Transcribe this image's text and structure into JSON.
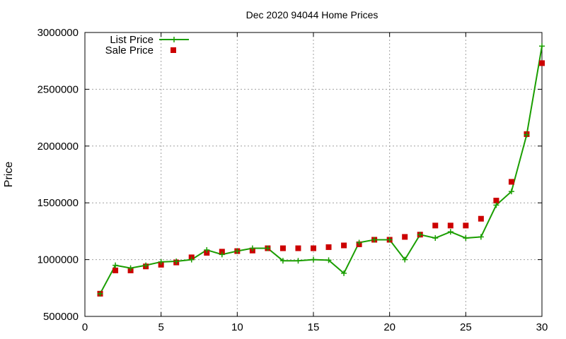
{
  "chart_data": {
    "type": "line",
    "title": "Dec 2020 94044 Home Prices",
    "xlabel": "",
    "ylabel": "Price",
    "xlim": [
      0,
      30
    ],
    "ylim": [
      500000,
      3000000
    ],
    "x_ticks": [
      0,
      5,
      10,
      15,
      20,
      25,
      30
    ],
    "y_ticks": [
      500000,
      1000000,
      1500000,
      2000000,
      2500000,
      3000000
    ],
    "grid": true,
    "legend_position": "top-left",
    "x": [
      1,
      2,
      3,
      4,
      5,
      6,
      7,
      8,
      9,
      10,
      11,
      12,
      13,
      14,
      15,
      16,
      17,
      18,
      19,
      20,
      21,
      22,
      23,
      24,
      25,
      26,
      27,
      28,
      29,
      30
    ],
    "series": [
      {
        "name": "List Price",
        "style": "line+cross",
        "color": "#1a9e00",
        "values": [
          700000,
          950000,
          925000,
          950000,
          980000,
          985000,
          1000000,
          1085000,
          1045000,
          1075000,
          1100000,
          1100000,
          990000,
          990000,
          1000000,
          995000,
          880000,
          1150000,
          1175000,
          1175000,
          1000000,
          1220000,
          1190000,
          1245000,
          1190000,
          1200000,
          1480000,
          1600000,
          2100000,
          2880000
        ]
      },
      {
        "name": "Sale Price",
        "style": "square",
        "color": "#cc0000",
        "values": [
          700000,
          905000,
          905000,
          940000,
          955000,
          975000,
          1020000,
          1060000,
          1070000,
          1075000,
          1080000,
          1100000,
          1100000,
          1100000,
          1100000,
          1110000,
          1125000,
          1135000,
          1175000,
          1175000,
          1200000,
          1220000,
          1300000,
          1300000,
          1300000,
          1360000,
          1520000,
          1685000,
          2105000,
          2730000
        ]
      }
    ]
  }
}
